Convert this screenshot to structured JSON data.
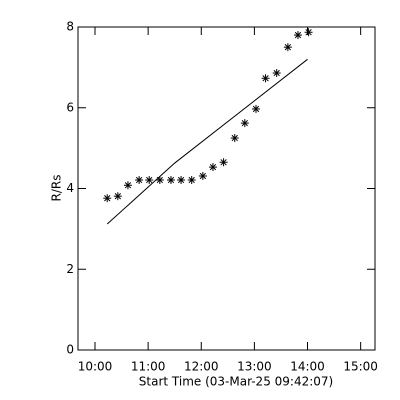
{
  "chart_data": {
    "type": "scatter",
    "xlabel": "Start Time (03-Mar-25 09:42:07)",
    "ylabel": "R/Rs",
    "xlim": [
      9.68,
      15.27
    ],
    "ylim": [
      0,
      8
    ],
    "xticks": [
      {
        "value": 10,
        "label": "10:00"
      },
      {
        "value": 11,
        "label": "11:00"
      },
      {
        "value": 12,
        "label": "12:00"
      },
      {
        "value": 13,
        "label": "13:00"
      },
      {
        "value": 14,
        "label": "14:00"
      },
      {
        "value": 15,
        "label": "15:00"
      }
    ],
    "yticks": [
      0,
      2,
      4,
      6,
      8
    ],
    "color": "#000000",
    "x": [
      10.23,
      10.43,
      10.62,
      10.83,
      11.02,
      11.22,
      11.43,
      11.62,
      11.82,
      12.03,
      12.22,
      12.42,
      12.63,
      12.82,
      13.03,
      13.21,
      13.42,
      13.63,
      13.82,
      14.02
    ],
    "values": [
      3.76,
      3.81,
      4.08,
      4.21,
      4.21,
      4.21,
      4.21,
      4.21,
      4.21,
      4.31,
      4.53,
      4.65,
      5.25,
      5.62,
      5.97,
      6.73,
      6.86,
      7.5,
      7.8,
      7.87
    ],
    "fit": {
      "type": "line",
      "x": [
        10.23,
        11.5,
        14.0
      ],
      "values": [
        3.12,
        4.63,
        7.2
      ]
    }
  }
}
